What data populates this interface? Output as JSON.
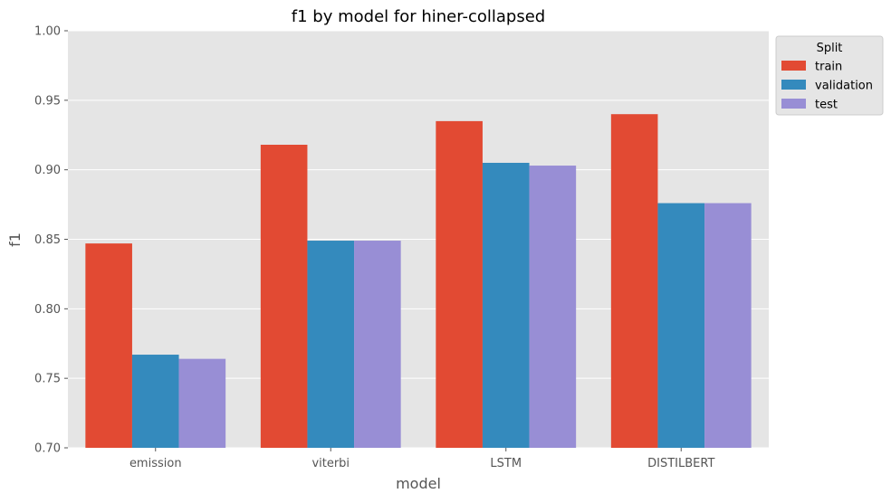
{
  "chart_data": {
    "type": "bar",
    "title": "f1 by model for hiner-collapsed",
    "xlabel": "model",
    "ylabel": "f1",
    "categories": [
      "emission",
      "viterbi",
      "LSTM",
      "DISTILBERT"
    ],
    "series": [
      {
        "name": "train",
        "color": "#E24A33",
        "values": [
          0.847,
          0.918,
          0.935,
          0.94
        ]
      },
      {
        "name": "validation",
        "color": "#348ABD",
        "values": [
          0.767,
          0.849,
          0.905,
          0.876
        ]
      },
      {
        "name": "test",
        "color": "#988ED5",
        "values": [
          0.764,
          0.849,
          0.903,
          0.876
        ]
      }
    ],
    "ylim": [
      0.7,
      1.0
    ],
    "yticks": [
      "0.70",
      "0.75",
      "0.80",
      "0.85",
      "0.90",
      "0.95",
      "1.00"
    ],
    "grid": true,
    "legend": {
      "title": "Split",
      "placement": "outside-top-right"
    }
  }
}
